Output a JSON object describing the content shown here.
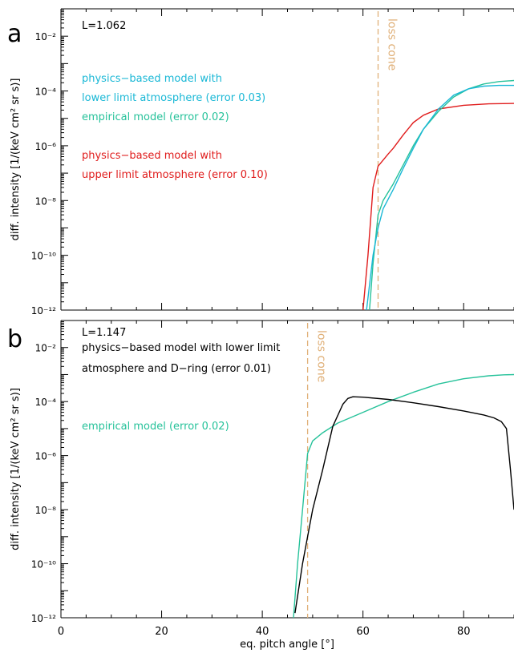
{
  "figure": {
    "shared_xlabel": "eq. pitch angle [°]"
  },
  "chart_data": [
    {
      "panel_letter": "a",
      "type": "line",
      "title": "",
      "xlabel": "",
      "ylabel": "diff. intensity [1/(keV cm² sr s)]",
      "xlim": [
        0,
        90
      ],
      "ylim": [
        1e-12,
        0.1
      ],
      "y_scale": "log",
      "x_ticks": [
        0,
        20,
        40,
        60,
        80
      ],
      "y_ticks": [
        {
          "value": 1e-12,
          "label": "10⁻¹²"
        },
        {
          "value": 1e-10,
          "label": "10⁻¹⁰"
        },
        {
          "value": 1e-08,
          "label": "10⁻⁸"
        },
        {
          "value": 1e-06,
          "label": "10⁻⁶"
        },
        {
          "value": 0.0001,
          "label": "10⁻⁴"
        },
        {
          "value": 0.01,
          "label": "10⁻²"
        }
      ],
      "annotations": {
        "l_value": "L=1.062",
        "loss_cone": {
          "x": 63.0,
          "label": "loss cone",
          "color": "#e0b078"
        }
      },
      "legend_text": [
        {
          "text": "physics−based model with",
          "color": "#1ab8d6"
        },
        {
          "text": "lower limit atmosphere (error 0.03)",
          "color": "#1ab8d6"
        },
        {
          "text": "empirical model (error 0.02)",
          "color": "#26c29a"
        },
        {
          "text": "physics−based model with",
          "color": "#e01c1c"
        },
        {
          "text": "upper limit atmosphere (error 0.10)",
          "color": "#e01c1c"
        }
      ],
      "series": [
        {
          "color": "#e01c1c",
          "x": [
            60.0,
            61.0,
            62.0,
            63.0,
            64.0,
            65.0,
            66.0,
            68.0,
            70.0,
            72.0,
            75.0,
            80.0,
            85.0,
            90.0
          ],
          "y": [
            1e-12,
            1e-10,
            3e-08,
            1.8e-07,
            3e-07,
            5e-07,
            8e-07,
            2.5e-06,
            7e-06,
            1.3e-05,
            2.2e-05,
            3e-05,
            3.4e-05,
            3.5e-05
          ]
        },
        {
          "color": "#26c29a",
          "x": [
            61.3,
            62.0,
            63.0,
            64.0,
            66.0,
            68.0,
            70.0,
            72.0,
            75.0,
            78.0,
            81.0,
            84.0,
            87.0,
            90.0
          ],
          "y": [
            1e-12,
            5e-11,
            3e-09,
            1e-08,
            4e-08,
            2e-07,
            1e-06,
            4e-06,
            1.8e-05,
            6e-05,
            0.00012,
            0.00018,
            0.00022,
            0.00024
          ]
        },
        {
          "color": "#1ab8d6",
          "x": [
            60.7,
            62.0,
            63.0,
            64.0,
            66.0,
            68.0,
            70.0,
            72.0,
            75.0,
            78.0,
            81.0,
            84.0,
            87.0,
            90.0
          ],
          "y": [
            1e-12,
            1e-10,
            1e-09,
            5e-09,
            2.5e-08,
            1.5e-07,
            8e-07,
            4e-06,
            2.2e-05,
            7e-05,
            0.00012,
            0.00015,
            0.00016,
            0.00016
          ]
        }
      ]
    },
    {
      "panel_letter": "b",
      "type": "line",
      "title": "",
      "xlabel": "eq. pitch angle [°]",
      "ylabel": "diff. intensity [1/(keV cm² sr s)]",
      "xlim": [
        0,
        90
      ],
      "ylim": [
        1e-12,
        0.1
      ],
      "y_scale": "log",
      "x_ticks": [
        0,
        20,
        40,
        60,
        80
      ],
      "y_ticks": [
        {
          "value": 1e-12,
          "label": "10⁻¹²"
        },
        {
          "value": 1e-10,
          "label": "10⁻¹⁰"
        },
        {
          "value": 1e-08,
          "label": "10⁻⁸"
        },
        {
          "value": 1e-06,
          "label": "10⁻⁶"
        },
        {
          "value": 0.0001,
          "label": "10⁻⁴"
        },
        {
          "value": 0.01,
          "label": "10⁻²"
        }
      ],
      "annotations": {
        "l_value": "L=1.147",
        "loss_cone": {
          "x": 49.0,
          "label": "loss cone",
          "color": "#e0b078"
        }
      },
      "legend_text": [
        {
          "text": "physics−based model with lower limit",
          "color": "#000000"
        },
        {
          "text": "atmosphere and D−ring (error 0.01)",
          "color": "#000000"
        },
        {
          "text": "empirical model (error 0.02)",
          "color": "#26c29a"
        }
      ],
      "series": [
        {
          "color": "#26c29a",
          "x": [
            46.2,
            47.0,
            48.0,
            49.0,
            50.0,
            52.0,
            55.0,
            60.0,
            65.0,
            70.0,
            75.0,
            80.0,
            85.0,
            88.0,
            90.0
          ],
          "y": [
            1e-12,
            1e-10,
            1e-08,
            1.2e-06,
            3.5e-06,
            7e-06,
            1.6e-05,
            4e-05,
            0.0001,
            0.00022,
            0.00045,
            0.0007,
            0.0009,
            0.00098,
            0.001
          ]
        },
        {
          "color": "#000000",
          "x": [
            46.5,
            48.0,
            50.0,
            52.0,
            54.0,
            56.0,
            57.0,
            58.0,
            60.0,
            65.0,
            70.0,
            75.0,
            80.0,
            84.0,
            86.0,
            87.5,
            88.5,
            89.3,
            90.0
          ],
          "y": [
            1.5e-12,
            1e-10,
            1e-08,
            3e-07,
            1.2e-05,
            8e-05,
            0.00013,
            0.00015,
            0.000145,
            0.00012,
            9e-05,
            6.5e-05,
            4.5e-05,
            3.2e-05,
            2.5e-05,
            1.8e-05,
            1e-05,
            3e-07,
            1e-08
          ]
        }
      ]
    }
  ]
}
